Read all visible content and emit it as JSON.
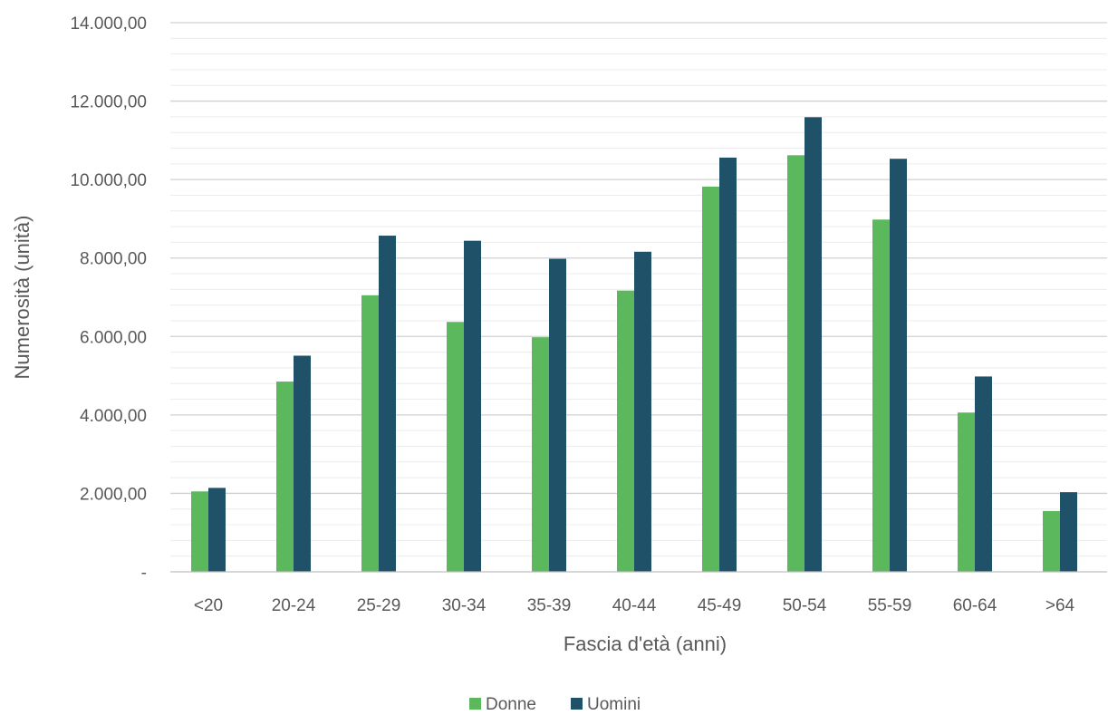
{
  "chart_data": {
    "type": "bar",
    "categories": [
      "<20",
      "20-24",
      "25-29",
      "30-34",
      "35-39",
      "40-44",
      "45-49",
      "50-54",
      "55-59",
      "60-64",
      ">64"
    ],
    "series": [
      {
        "name": "Donne",
        "color": "#5cb85c",
        "values": [
          2050,
          4850,
          7050,
          6370,
          5980,
          7170,
          9820,
          10620,
          8980,
          4060,
          1550
        ]
      },
      {
        "name": "Uomini",
        "color": "#1f5269",
        "values": [
          2140,
          5510,
          8570,
          8440,
          7980,
          8160,
          10560,
          11590,
          10530,
          4980,
          2030
        ]
      }
    ],
    "title": "",
    "xlabel": "Fascia d'età (anni)",
    "ylabel": "Numerosità (unità)",
    "ylim": [
      0,
      14000
    ],
    "yticks": [
      {
        "value": 0,
        "label": "-"
      },
      {
        "value": 2000,
        "label": "2.000,00"
      },
      {
        "value": 4000,
        "label": "4.000,00"
      },
      {
        "value": 6000,
        "label": "6.000,00"
      },
      {
        "value": 8000,
        "label": "8.000,00"
      },
      {
        "value": 10000,
        "label": "10.000,00"
      },
      {
        "value": 12000,
        "label": "12.000,00"
      },
      {
        "value": 14000,
        "label": "14.000,00"
      }
    ],
    "minor_step": 400,
    "grid": true,
    "legend_position": "bottom"
  }
}
